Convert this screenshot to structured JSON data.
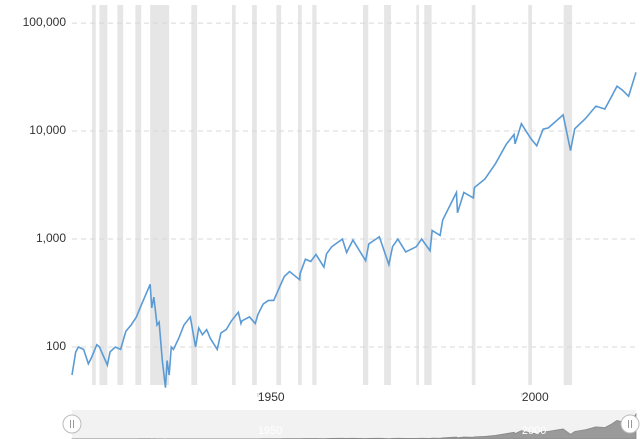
{
  "chart_data": {
    "type": "line",
    "log_y": true,
    "grid": true,
    "color": "#5b9bd5",
    "shade_color": "#e6e6e6",
    "x": [
      1914.8,
      1915.5,
      1916,
      1917,
      1917.9,
      1918.5,
      1919.5,
      1920,
      1921.5,
      1922,
      1923,
      1924,
      1925,
      1926,
      1927,
      1928,
      1929.6,
      1929.9,
      1930.3,
      1930.9,
      1931.3,
      1931.9,
      1932.5,
      1932.8,
      1933.2,
      1933.6,
      1934,
      1935,
      1936,
      1937.2,
      1938.2,
      1938.8,
      1939.5,
      1940.3,
      1941,
      1942.3,
      1943,
      1944,
      1945,
      1946.3,
      1946.8,
      1947,
      1948.4,
      1949.5,
      1950,
      1951,
      1952,
      1953,
      1954,
      1955,
      1956,
      1957.9,
      1958,
      1959,
      1960,
      1961,
      1962.5,
      1963,
      1964,
      1966,
      1966.8,
      1968,
      1970.4,
      1971,
      1973,
      1974.8,
      1975.5,
      1976.5,
      1978,
      1980,
      1981,
      1982.6,
      1983,
      1984.5,
      1985,
      1987.6,
      1987.8,
      1989,
      1990.8,
      1991,
      1993,
      1995,
      1997,
      1998.5,
      1998.7,
      1999.9,
      2000.5,
      2001.7,
      2002.8,
      2004,
      2005,
      2007.8,
      2009.2,
      2010,
      2012,
      2014,
      2015.7,
      2017,
      2018,
      2019,
      2020.2,
      2021.6
    ],
    "values": [
      55,
      90,
      100,
      95,
      70,
      80,
      105,
      100,
      68,
      90,
      100,
      95,
      140,
      160,
      190,
      250,
      381,
      230,
      290,
      160,
      170,
      75,
      42,
      75,
      55,
      100,
      95,
      120,
      160,
      190,
      100,
      150,
      130,
      145,
      120,
      95,
      135,
      145,
      175,
      210,
      165,
      175,
      190,
      165,
      200,
      250,
      270,
      270,
      350,
      450,
      500,
      420,
      480,
      650,
      620,
      720,
      550,
      730,
      850,
      1000,
      750,
      980,
      630,
      900,
      1050,
      580,
      850,
      1000,
      760,
      850,
      1000,
      780,
      1200,
      1080,
      1500,
      2700,
      1750,
      2700,
      2400,
      3000,
      3600,
      5000,
      7500,
      9300,
      7600,
      11700,
      10500,
      8500,
      7300,
      10400,
      10700,
      14100,
      6600,
      10500,
      13000,
      17000,
      16000,
      21000,
      26000,
      24000,
      21000,
      35000
    ],
    "shaded_periods": [
      [
        1918.6,
        1919.3
      ],
      [
        1920.0,
        1921.5
      ],
      [
        1923.4,
        1924.5
      ],
      [
        1926.8,
        1927.9
      ],
      [
        1929.6,
        1933.2
      ],
      [
        1937.4,
        1938.5
      ],
      [
        1945.1,
        1945.8
      ],
      [
        1948.9,
        1949.8
      ],
      [
        1953.5,
        1954.4
      ],
      [
        1957.6,
        1958.3
      ],
      [
        1960.3,
        1961.1
      ],
      [
        1969.9,
        1970.9
      ],
      [
        1973.9,
        1975.2
      ],
      [
        1980.0,
        1980.5
      ],
      [
        1981.5,
        1982.9
      ],
      [
        1990.5,
        1991.2
      ],
      [
        2001.2,
        2001.9
      ],
      [
        2007.9,
        2009.5
      ]
    ],
    "xlim": [
      1914.8,
      2021.6
    ],
    "xticks": [
      1950,
      2000
    ],
    "ylim": [
      44.5,
      147000
    ],
    "yticks": [
      100,
      {
        "value": 1000,
        "label": "1,000"
      },
      {
        "value": 10000,
        "label": "10,000"
      },
      {
        "value": 100000,
        "label": "100,000"
      }
    ]
  }
}
